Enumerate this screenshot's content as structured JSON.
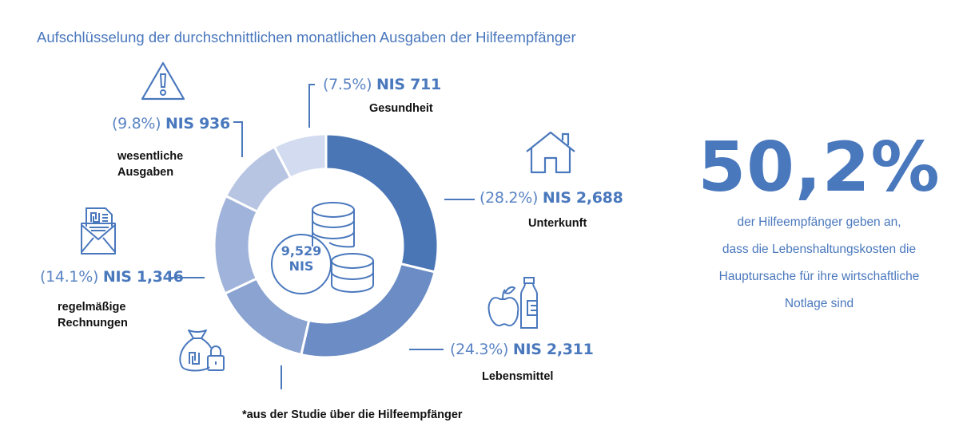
{
  "title": "Aufschlüsselung der durchschnittlichen monatlichen Ausgaben der Hilfeempfänger",
  "center": {
    "total_line1": "9,529",
    "total_line2": "NIS",
    "icon": "coins-stack-icon"
  },
  "chart_data": {
    "type": "pie",
    "variant": "donut",
    "title": "Aufschlüsselung der durchschnittlichen monatlichen Ausgaben der Hilfeempfänger",
    "total": 9529,
    "currency": "NIS",
    "start": "12 o'clock, clockwise",
    "segments": [
      {
        "category": "Unterkunft",
        "percent": 28.2,
        "value": 2688,
        "pct_label": "(28.2%)",
        "amt_label": "NIS 2,688",
        "color": "#4a76b6",
        "icon": "house-icon"
      },
      {
        "category": "Lebensmittel",
        "percent": 24.3,
        "value": 2311,
        "pct_label": "(24.3%)",
        "amt_label": "NIS 2,311",
        "color": "#6b8cc4",
        "icon": "apple-bottle-icon"
      },
      {
        "category": "",
        "percent": 14.1,
        "value": 1346,
        "pct_label": "",
        "amt_label": "",
        "color": "#8aa3d1",
        "icon": "money-bag-lock-icon"
      },
      {
        "category": "regelmäßige Rechnungen",
        "percent": 14.1,
        "value": 1346,
        "pct_label": "(14.1%)",
        "amt_label": "NIS 1,346",
        "color": "#a0b3da",
        "icon": "bill-envelope-icon"
      },
      {
        "category": "wesentliche Ausgaben",
        "percent": 9.8,
        "value": 936,
        "pct_label": "(9.8%)",
        "amt_label": "NIS 936",
        "color": "#b7c5e3",
        "icon": "warning-icon"
      },
      {
        "category": "Gesundheit",
        "percent": 7.5,
        "value": 711,
        "pct_label": "(7.5%)",
        "amt_label": "NIS 711",
        "color": "#d2dbef",
        "icon": ""
      }
    ]
  },
  "labels": {
    "unterkunft": {
      "pct": "(28.2%)",
      "amt": "NIS 2,688",
      "cat": "Unterkunft"
    },
    "lebensmittel": {
      "pct": "(24.3%)",
      "amt": "NIS 2,311",
      "cat": "Lebensmittel"
    },
    "rechnungen": {
      "pct": "(14.1%)",
      "amt": "NIS 1,346",
      "cat1": "regelmäßige",
      "cat2": "Rechnungen"
    },
    "wesentliche": {
      "pct": "(9.8%)",
      "amt": "NIS 936",
      "cat1": "wesentliche",
      "cat2": "Ausgaben"
    },
    "gesundheit": {
      "pct": "(7.5%)",
      "amt": "NIS 711",
      "cat": "Gesundheit"
    }
  },
  "stat": {
    "value": "50,2%",
    "lines": [
      "der Hilfeempfänger geben an,",
      "dass die Lebenshaltungskosten die",
      "Hauptursache für ihre wirtschaftliche",
      "Notlage sind"
    ]
  },
  "footnote": "*aus der Studie über die Hilfeempfänger"
}
